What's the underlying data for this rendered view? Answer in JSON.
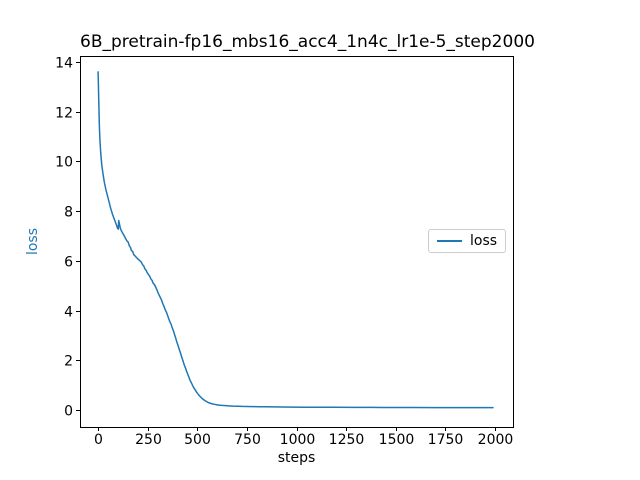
{
  "chart_data": {
    "type": "line",
    "title": "6B_pretrain-fp16_mbs16_acc4_1n4c_lr1e-5_step2000",
    "xlabel": "steps",
    "ylabel": "loss",
    "ylabel_color": "#1f77b4",
    "background_color": "#ffffff",
    "axis_color": "#000000",
    "grid": false,
    "xlim": [
      -91,
      2091
    ],
    "ylim": [
      -0.68,
      14.24
    ],
    "xticks": [
      0,
      250,
      500,
      750,
      1000,
      1250,
      1500,
      1750,
      2000
    ],
    "yticks": [
      0,
      2,
      4,
      6,
      8,
      10,
      12,
      14
    ],
    "legend": {
      "position": "center right",
      "entries": [
        "loss"
      ]
    },
    "series": [
      {
        "name": "loss",
        "color": "#1f77b4",
        "points": [
          [
            0,
            13.6
          ],
          [
            2,
            12.9
          ],
          [
            4,
            12.2
          ],
          [
            7,
            11.4
          ],
          [
            10,
            10.8
          ],
          [
            14,
            10.3
          ],
          [
            19,
            9.85
          ],
          [
            25,
            9.5
          ],
          [
            32,
            9.15
          ],
          [
            40,
            8.85
          ],
          [
            48,
            8.6
          ],
          [
            56,
            8.35
          ],
          [
            64,
            8.1
          ],
          [
            72,
            7.9
          ],
          [
            80,
            7.72
          ],
          [
            88,
            7.55
          ],
          [
            94,
            7.42
          ],
          [
            99,
            7.3
          ],
          [
            102,
            7.28
          ],
          [
            104,
            7.62
          ],
          [
            108,
            7.48
          ],
          [
            112,
            7.32
          ],
          [
            118,
            7.2
          ],
          [
            125,
            7.1
          ],
          [
            132,
            7.0
          ],
          [
            139,
            6.9
          ],
          [
            146,
            6.8
          ],
          [
            152,
            6.75
          ],
          [
            158,
            6.6
          ],
          [
            163,
            6.55
          ],
          [
            168,
            6.42
          ],
          [
            174,
            6.38
          ],
          [
            180,
            6.25
          ],
          [
            186,
            6.2
          ],
          [
            192,
            6.15
          ],
          [
            198,
            6.1
          ],
          [
            205,
            6.05
          ],
          [
            212,
            6.0
          ],
          [
            218,
            5.95
          ],
          [
            224,
            5.85
          ],
          [
            230,
            5.8
          ],
          [
            236,
            5.68
          ],
          [
            242,
            5.62
          ],
          [
            248,
            5.52
          ],
          [
            254,
            5.45
          ],
          [
            260,
            5.38
          ],
          [
            266,
            5.28
          ],
          [
            272,
            5.22
          ],
          [
            278,
            5.1
          ],
          [
            284,
            5.05
          ],
          [
            290,
            4.95
          ],
          [
            296,
            4.85
          ],
          [
            302,
            4.72
          ],
          [
            308,
            4.62
          ],
          [
            314,
            4.52
          ],
          [
            320,
            4.42
          ],
          [
            326,
            4.28
          ],
          [
            332,
            4.18
          ],
          [
            338,
            4.05
          ],
          [
            344,
            3.95
          ],
          [
            350,
            3.82
          ],
          [
            356,
            3.68
          ],
          [
            362,
            3.55
          ],
          [
            368,
            3.45
          ],
          [
            374,
            3.3
          ],
          [
            380,
            3.18
          ],
          [
            386,
            3.02
          ],
          [
            392,
            2.88
          ],
          [
            398,
            2.72
          ],
          [
            404,
            2.58
          ],
          [
            410,
            2.42
          ],
          [
            416,
            2.28
          ],
          [
            422,
            2.12
          ],
          [
            428,
            1.98
          ],
          [
            434,
            1.82
          ],
          [
            440,
            1.7
          ],
          [
            446,
            1.56
          ],
          [
            452,
            1.44
          ],
          [
            458,
            1.32
          ],
          [
            464,
            1.2
          ],
          [
            470,
            1.1
          ],
          [
            477,
            0.98
          ],
          [
            484,
            0.88
          ],
          [
            492,
            0.78
          ],
          [
            500,
            0.68
          ],
          [
            508,
            0.6
          ],
          [
            516,
            0.53
          ],
          [
            524,
            0.47
          ],
          [
            532,
            0.42
          ],
          [
            541,
            0.37
          ],
          [
            550,
            0.33
          ],
          [
            560,
            0.29
          ],
          [
            571,
            0.26
          ],
          [
            583,
            0.235
          ],
          [
            596,
            0.215
          ],
          [
            610,
            0.2
          ],
          [
            625,
            0.19
          ],
          [
            642,
            0.18
          ],
          [
            660,
            0.17
          ],
          [
            680,
            0.162
          ],
          [
            702,
            0.155
          ],
          [
            726,
            0.15
          ],
          [
            752,
            0.145
          ],
          [
            780,
            0.14
          ],
          [
            810,
            0.136
          ],
          [
            845,
            0.132
          ],
          [
            885,
            0.128
          ],
          [
            930,
            0.125
          ],
          [
            980,
            0.122
          ],
          [
            1040,
            0.118
          ],
          [
            1110,
            0.115
          ],
          [
            1190,
            0.112
          ],
          [
            1280,
            0.11
          ],
          [
            1380,
            0.108
          ],
          [
            1480,
            0.106
          ],
          [
            1590,
            0.104
          ],
          [
            1700,
            0.102
          ],
          [
            1810,
            0.101
          ],
          [
            1900,
            0.1
          ],
          [
            1990,
            0.1
          ]
        ]
      }
    ]
  }
}
